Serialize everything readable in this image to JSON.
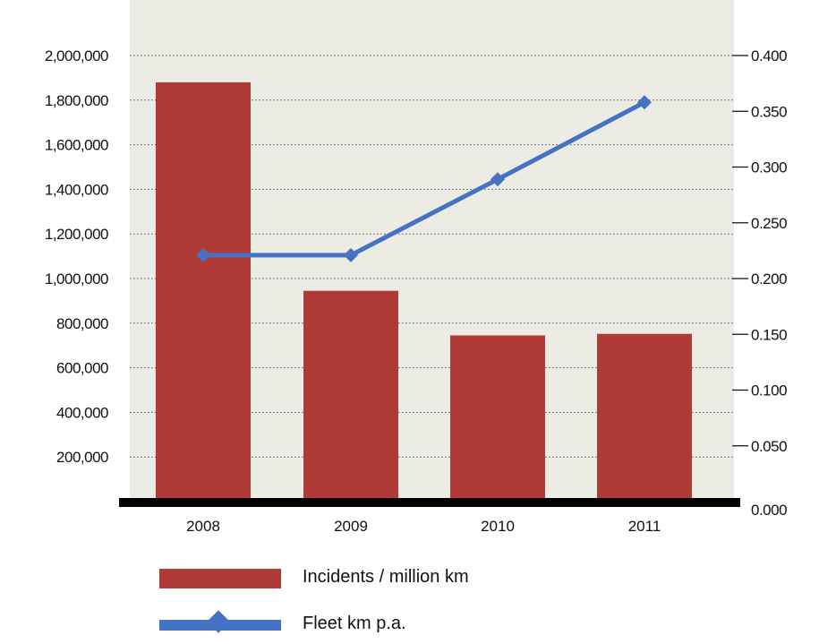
{
  "chart_data": {
    "type": "bar",
    "categories": [
      "2008",
      "2009",
      "2010",
      "2011"
    ],
    "series": [
      {
        "name": "Incidents / million km",
        "type": "bar",
        "axis": "left",
        "values": [
          1880000,
          945000,
          745000,
          752000
        ],
        "color": "#b03a36"
      },
      {
        "name": "Fleet km p.a.",
        "type": "line",
        "axis": "right",
        "values": [
          0.221,
          0.221,
          0.289,
          0.358
        ],
        "color": "#4472c4"
      }
    ],
    "y_left": {
      "lim": [
        0,
        2000000
      ],
      "ticks": [
        200000,
        400000,
        600000,
        800000,
        1000000,
        1200000,
        1400000,
        1600000,
        1800000,
        2000000
      ],
      "tick_labels": [
        "200,000",
        "400,000",
        "600,000",
        "800,000",
        "1,000,000",
        "1,200,000",
        "1,400,000",
        "1,600,000",
        "1,800,000",
        "2,000,000"
      ]
    },
    "y_right": {
      "lim": [
        0,
        0.4
      ],
      "ticks": [
        0.0,
        0.05,
        0.1,
        0.15,
        0.2,
        0.25,
        0.3,
        0.35,
        0.4
      ],
      "tick_labels": [
        "0.000",
        "0.050",
        "0.100",
        "0.150",
        "0.200",
        "0.250",
        "0.300",
        "0.350",
        "0.400"
      ]
    },
    "grid": true,
    "legend_position": "bottom",
    "plot_background": "#ecebe4"
  }
}
